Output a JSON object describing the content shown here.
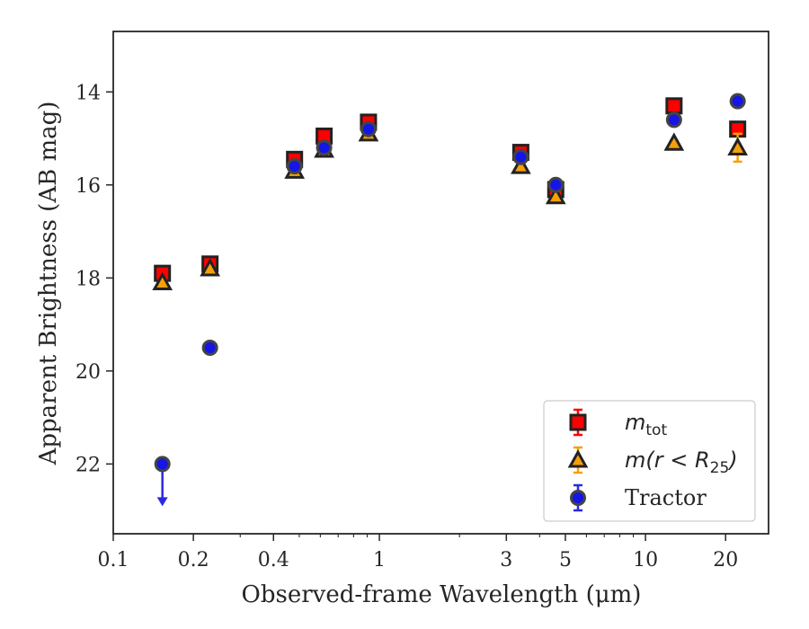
{
  "chart_data": {
    "type": "scatter",
    "xlabel": "Observed-frame Wavelength (μm)",
    "ylabel": "Apparent Brightness (AB mag)",
    "xscale": "log",
    "xlim": [
      0.1,
      29
    ],
    "ylim": [
      23.5,
      12.7
    ],
    "y_inverted": true,
    "x_ticks": [
      0.1,
      0.2,
      0.4,
      1,
      3,
      5,
      10,
      20
    ],
    "x_tick_labels": [
      "0.1",
      "0.2",
      "0.4",
      "1",
      "3",
      "5",
      "10",
      "20"
    ],
    "y_ticks": [
      14,
      16,
      18,
      20,
      22
    ],
    "y_tick_labels": [
      "14",
      "16",
      "18",
      "20",
      "22"
    ],
    "grid": false,
    "legend_position": "lower-right",
    "series": [
      {
        "name": "m_tot",
        "label_main": "m",
        "label_sub": "tot",
        "marker": "square",
        "fill": "#ff0000",
        "edge": "#222222",
        "errcolor": "#ff0000",
        "points": [
          {
            "x": 0.153,
            "y": 17.9,
            "err": 0.05
          },
          {
            "x": 0.231,
            "y": 17.7,
            "err": 0.05
          },
          {
            "x": 0.48,
            "y": 15.45,
            "err": 0.05
          },
          {
            "x": 0.62,
            "y": 14.95,
            "err": 0.05
          },
          {
            "x": 0.91,
            "y": 14.65,
            "err": 0.05
          },
          {
            "x": 3.4,
            "y": 15.3,
            "err": 0.05
          },
          {
            "x": 4.6,
            "y": 16.1,
            "err": 0.05
          },
          {
            "x": 12.8,
            "y": 14.3,
            "err": 0.05
          },
          {
            "x": 22.2,
            "y": 14.8,
            "err": 0.05
          }
        ]
      },
      {
        "name": "m(r<R25)",
        "label_main": "m(r < R",
        "label_sub": "25",
        "label_end": ")",
        "marker": "triangle",
        "fill": "#f5a00a",
        "edge": "#222222",
        "errcolor": "#f5a00a",
        "points": [
          {
            "x": 0.153,
            "y": 18.1,
            "err": 0.05
          },
          {
            "x": 0.231,
            "y": 17.8,
            "err": 0.05
          },
          {
            "x": 0.48,
            "y": 15.7,
            "err": 0.05
          },
          {
            "x": 0.62,
            "y": 15.25,
            "err": 0.05
          },
          {
            "x": 0.91,
            "y": 14.9,
            "err": 0.05
          },
          {
            "x": 3.4,
            "y": 15.6,
            "err": 0.05
          },
          {
            "x": 4.6,
            "y": 16.25,
            "err": 0.05
          },
          {
            "x": 12.8,
            "y": 15.1,
            "err": 0.05
          },
          {
            "x": 22.2,
            "y": 15.2,
            "err": 0.3
          }
        ]
      },
      {
        "name": "Tractor",
        "marker": "circle",
        "fill": "#1515e6",
        "edge": "#444444",
        "errcolor": "#2a2ae0",
        "points": [
          {
            "x": 0.153,
            "y": 22.0,
            "upper_limit": true
          },
          {
            "x": 0.231,
            "y": 19.5,
            "err": 0.05
          },
          {
            "x": 0.48,
            "y": 15.6,
            "err": 0.05
          },
          {
            "x": 0.62,
            "y": 15.2,
            "err": 0.05
          },
          {
            "x": 0.91,
            "y": 14.8,
            "err": 0.05
          },
          {
            "x": 3.4,
            "y": 15.4,
            "err": 0.05
          },
          {
            "x": 4.6,
            "y": 16.0,
            "err": 0.05
          },
          {
            "x": 12.8,
            "y": 14.6,
            "err": 0.05
          },
          {
            "x": 22.2,
            "y": 14.2,
            "err": 0.05
          }
        ]
      }
    ]
  }
}
